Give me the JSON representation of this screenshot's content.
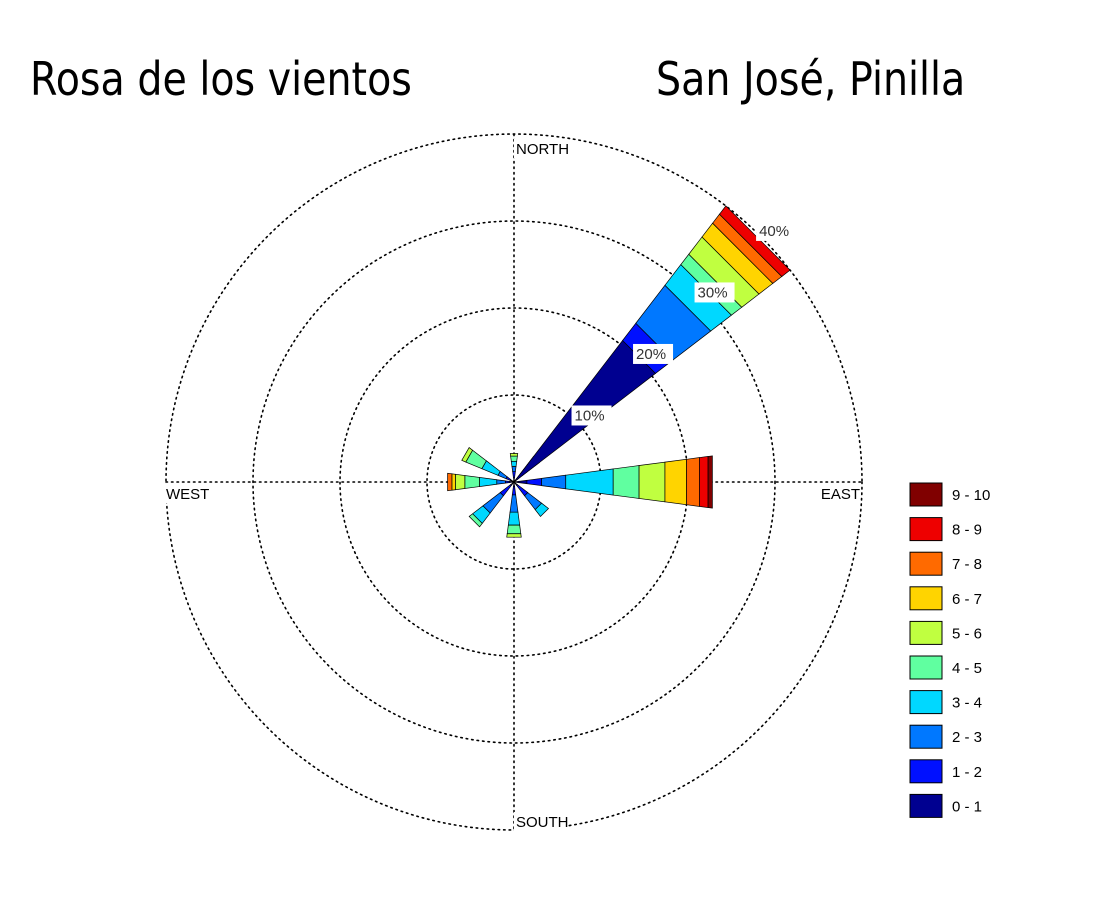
{
  "title_left": "Rosa de los vientos",
  "title_right": "San José, Pinilla",
  "chart_data": {
    "type": "windrose",
    "directions": [
      "NORTH",
      "EAST",
      "SOUTH",
      "WEST"
    ],
    "ring_labels": [
      "10%",
      "20%",
      "30%",
      "40%"
    ],
    "max_percent": 40,
    "legend": [
      {
        "label": "9 - 10",
        "color": "#800000"
      },
      {
        "label": "8 - 9",
        "color": "#ee0000"
      },
      {
        "label": "7 - 8",
        "color": "#ff6a00"
      },
      {
        "label": "6 - 7",
        "color": "#ffd400"
      },
      {
        "label": "5 - 6",
        "color": "#c0ff40"
      },
      {
        "label": "4 - 5",
        "color": "#60ffa0"
      },
      {
        "label": "3 - 4",
        "color": "#00d8ff"
      },
      {
        "label": "2 - 3",
        "color": "#0078ff"
      },
      {
        "label": "1 - 2",
        "color": "#0010ff"
      },
      {
        "label": "0 - 1",
        "color": "#000090"
      }
    ],
    "sectors": [
      {
        "direction_deg": 0,
        "cumulative_percent": [
          0.5,
          1.2,
          1.8,
          2.4,
          3.0,
          3.3
        ]
      },
      {
        "direction_deg": 45,
        "cumulative_percent": [
          0.5,
          1.2,
          1.8,
          3.7
        ]
      },
      {
        "direction_deg": 45,
        "cumulative_percent": [
          20.5,
          23.0,
          28.5,
          31.5,
          33.0,
          35.5,
          37.5,
          38.8,
          40.0
        ]
      },
      {
        "direction_deg": 90,
        "cumulative_percent": [
          1.5,
          3.2,
          6.0,
          11.5,
          14.5,
          17.5,
          20.0,
          21.5,
          22.5,
          23.0
        ]
      },
      {
        "direction_deg": 135,
        "cumulative_percent": [
          0.5,
          2.0,
          4.0,
          5.0
        ]
      },
      {
        "direction_deg": 180,
        "cumulative_percent": [
          0.5,
          1.5,
          3.5,
          5.0,
          6.0,
          6.4
        ]
      },
      {
        "direction_deg": 225,
        "cumulative_percent": [
          0.5,
          2.0,
          4.5,
          6.0,
          6.5
        ]
      },
      {
        "direction_deg": 270,
        "cumulative_percent": [
          0.5,
          1.0,
          2.0,
          4.0,
          5.7,
          6.8,
          7.2,
          7.7
        ]
      },
      {
        "direction_deg": 300,
        "cumulative_percent": [
          0.5,
          1.0,
          2.0,
          4.0,
          6.0,
          6.5
        ]
      }
    ]
  }
}
